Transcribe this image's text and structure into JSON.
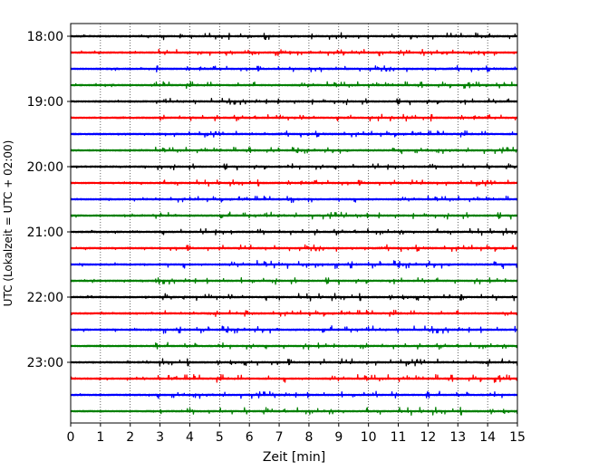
{
  "chart_data": {
    "type": "line",
    "title": "",
    "xlabel": "Zeit  [min]",
    "ylabel": "UTC (Lokalzeit = UTC + 02:00)",
    "xlim": [
      0,
      15
    ],
    "x_ticks": [
      0,
      1,
      2,
      3,
      4,
      5,
      6,
      7,
      8,
      9,
      10,
      11,
      12,
      13,
      14,
      15
    ],
    "y_tick_labels": [
      "18:00",
      "19:00",
      "20:00",
      "21:00",
      "22:00",
      "23:00"
    ],
    "grid": "vertical dotted lines at each minute",
    "legend": "none",
    "trace_interval_min": 15,
    "color_cycle": [
      "#000000",
      "#ff0000",
      "#0000ff",
      "#008000"
    ],
    "series": [
      {
        "start": "18:00",
        "color": "#000000",
        "burst_level": 0.5
      },
      {
        "start": "18:15",
        "color": "#ff0000",
        "burst_level": 0.45
      },
      {
        "start": "18:30",
        "color": "#0000ff",
        "burst_level": 0.45
      },
      {
        "start": "18:45",
        "color": "#008000",
        "burst_level": 0.5
      },
      {
        "start": "19:00",
        "color": "#000000",
        "burst_level": 0.45
      },
      {
        "start": "19:15",
        "color": "#ff0000",
        "burst_level": 0.5
      },
      {
        "start": "19:30",
        "color": "#0000ff",
        "burst_level": 0.45
      },
      {
        "start": "19:45",
        "color": "#008000",
        "burst_level": 0.45
      },
      {
        "start": "20:00",
        "color": "#000000",
        "burst_level": 0.45
      },
      {
        "start": "20:15",
        "color": "#ff0000",
        "burst_level": 0.45
      },
      {
        "start": "20:30",
        "color": "#0000ff",
        "burst_level": 0.45
      },
      {
        "start": "20:45",
        "color": "#008000",
        "burst_level": 0.5
      },
      {
        "start": "21:00",
        "color": "#000000",
        "burst_level": 0.5
      },
      {
        "start": "21:15",
        "color": "#ff0000",
        "burst_level": 0.5
      },
      {
        "start": "21:30",
        "color": "#0000ff",
        "burst_level": 0.6
      },
      {
        "start": "21:45",
        "color": "#008000",
        "burst_level": 0.5
      },
      {
        "start": "22:00",
        "color": "#000000",
        "burst_level": 0.55
      },
      {
        "start": "22:15",
        "color": "#ff0000",
        "burst_level": 0.45
      },
      {
        "start": "22:30",
        "color": "#0000ff",
        "burst_level": 0.55
      },
      {
        "start": "22:45",
        "color": "#008000",
        "burst_level": 0.5
      },
      {
        "start": "23:00",
        "color": "#000000",
        "burst_level": 0.55
      },
      {
        "start": "23:15",
        "color": "#ff0000",
        "burst_level": 0.6
      },
      {
        "start": "23:30",
        "color": "#0000ff",
        "burst_level": 0.5
      },
      {
        "start": "23:45",
        "color": "#008000",
        "burst_level": 0.6
      }
    ]
  }
}
